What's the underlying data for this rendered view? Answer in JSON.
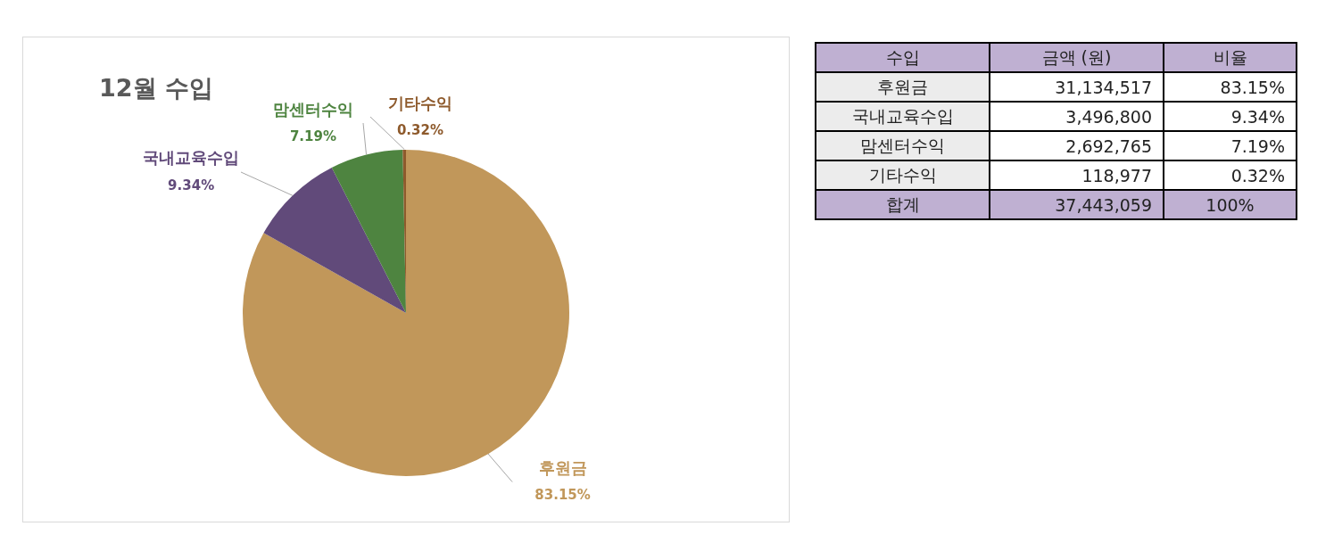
{
  "chart_data": [
    {
      "type": "pie",
      "title": "12월 수입",
      "categories": [
        "후원금",
        "국내교육수입",
        "맘센터수익",
        "기타수익"
      ],
      "values": [
        83.15,
        9.34,
        7.19,
        0.32
      ],
      "colors": [
        "#c1975a",
        "#614a7a",
        "#4e8440",
        "#8e5a2c"
      ],
      "value_labels": [
        "83.15%",
        "9.34%",
        "7.19%",
        "0.32%"
      ],
      "legend": false
    },
    {
      "type": "other",
      "annotations": [
        "수입",
        "금액 (원)",
        "비율",
        "후원금",
        "31,134,517",
        "83.15%",
        "국내교육수입",
        "3,496,800",
        "9.34%",
        "맘센터수익",
        "2,692,765",
        "7.19%",
        "기타수익",
        "118,977",
        "0.32%",
        "합계",
        "37,443,059",
        "100%"
      ]
    }
  ]
}
